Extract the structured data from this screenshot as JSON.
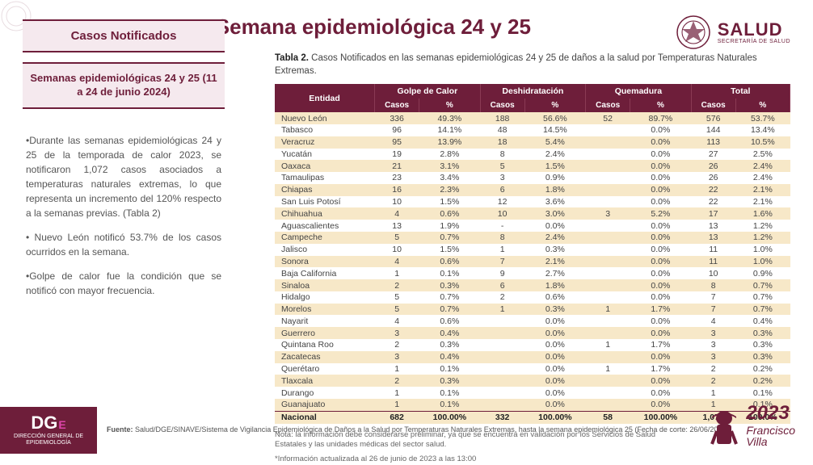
{
  "header": {
    "title": "Semana epidemiológica 24 y 25",
    "salud_main": "SALUD",
    "salud_sub": "SECRETARÍA DE SALUD"
  },
  "sidebar": {
    "box1": "Casos  Notificados",
    "box2": "Semanas epidemiológicas 24 y 25 (11 a 24 de junio 2024)",
    "p1": "•Durante las semanas epidemiológicas 24 y 25 de la temporada de calor 2023, se notificaron 1,072 casos asociados a temperaturas naturales extremas, lo que representa un incremento del 120%  respecto a la semanas previas. (Tabla 2)",
    "p2": "• Nuevo León notificó 53.7% de los casos ocurridos en la semana.",
    "p3": "•Golpe de calor fue la condición que se notificó con mayor frecuencia."
  },
  "table": {
    "title_bold": "Tabla 2.",
    "title_rest": " Casos Notificados en las semanas epidemiológicas 24 y 25 de daños a la salud por Temperaturas Naturales Extremas.",
    "head": {
      "entidad": "Entidad",
      "golpe": "Golpe de Calor",
      "deshi": "Deshidratación",
      "quema": "Quemadura",
      "total": "Total",
      "casos": "Casos",
      "pct": "%"
    },
    "rows": [
      {
        "e": "Nuevo León",
        "gc": "336",
        "gp": "49.3%",
        "dc": "188",
        "dp": "56.6%",
        "qc": "52",
        "qp": "89.7%",
        "tc": "576",
        "tp": "53.7%"
      },
      {
        "e": "Tabasco",
        "gc": "96",
        "gp": "14.1%",
        "dc": "48",
        "dp": "14.5%",
        "qc": "",
        "qp": "0.0%",
        "tc": "144",
        "tp": "13.4%"
      },
      {
        "e": "Veracruz",
        "gc": "95",
        "gp": "13.9%",
        "dc": "18",
        "dp": "5.4%",
        "qc": "",
        "qp": "0.0%",
        "tc": "113",
        "tp": "10.5%"
      },
      {
        "e": "Yucatán",
        "gc": "19",
        "gp": "2.8%",
        "dc": "8",
        "dp": "2.4%",
        "qc": "",
        "qp": "0.0%",
        "tc": "27",
        "tp": "2.5%"
      },
      {
        "e": "Oaxaca",
        "gc": "21",
        "gp": "3.1%",
        "dc": "5",
        "dp": "1.5%",
        "qc": "",
        "qp": "0.0%",
        "tc": "26",
        "tp": "2.4%"
      },
      {
        "e": "Tamaulipas",
        "gc": "23",
        "gp": "3.4%",
        "dc": "3",
        "dp": "0.9%",
        "qc": "",
        "qp": "0.0%",
        "tc": "26",
        "tp": "2.4%"
      },
      {
        "e": "Chiapas",
        "gc": "16",
        "gp": "2.3%",
        "dc": "6",
        "dp": "1.8%",
        "qc": "",
        "qp": "0.0%",
        "tc": "22",
        "tp": "2.1%"
      },
      {
        "e": "San Luis Potosí",
        "gc": "10",
        "gp": "1.5%",
        "dc": "12",
        "dp": "3.6%",
        "qc": "",
        "qp": "0.0%",
        "tc": "22",
        "tp": "2.1%"
      },
      {
        "e": "Chihuahua",
        "gc": "4",
        "gp": "0.6%",
        "dc": "10",
        "dp": "3.0%",
        "qc": "3",
        "qp": "5.2%",
        "tc": "17",
        "tp": "1.6%"
      },
      {
        "e": "Aguascalientes",
        "gc": "13",
        "gp": "1.9%",
        "dc": "-",
        "dp": "0.0%",
        "qc": "",
        "qp": "0.0%",
        "tc": "13",
        "tp": "1.2%"
      },
      {
        "e": "Campeche",
        "gc": "5",
        "gp": "0.7%",
        "dc": "8",
        "dp": "2.4%",
        "qc": "",
        "qp": "0.0%",
        "tc": "13",
        "tp": "1.2%"
      },
      {
        "e": "Jalisco",
        "gc": "10",
        "gp": "1.5%",
        "dc": "1",
        "dp": "0.3%",
        "qc": "",
        "qp": "0.0%",
        "tc": "11",
        "tp": "1.0%"
      },
      {
        "e": "Sonora",
        "gc": "4",
        "gp": "0.6%",
        "dc": "7",
        "dp": "2.1%",
        "qc": "",
        "qp": "0.0%",
        "tc": "11",
        "tp": "1.0%"
      },
      {
        "e": "Baja California",
        "gc": "1",
        "gp": "0.1%",
        "dc": "9",
        "dp": "2.7%",
        "qc": "",
        "qp": "0.0%",
        "tc": "10",
        "tp": "0.9%"
      },
      {
        "e": "Sinaloa",
        "gc": "2",
        "gp": "0.3%",
        "dc": "6",
        "dp": "1.8%",
        "qc": "",
        "qp": "0.0%",
        "tc": "8",
        "tp": "0.7%"
      },
      {
        "e": "Hidalgo",
        "gc": "5",
        "gp": "0.7%",
        "dc": "2",
        "dp": "0.6%",
        "qc": "",
        "qp": "0.0%",
        "tc": "7",
        "tp": "0.7%"
      },
      {
        "e": "Morelos",
        "gc": "5",
        "gp": "0.7%",
        "dc": "1",
        "dp": "0.3%",
        "qc": "1",
        "qp": "1.7%",
        "tc": "7",
        "tp": "0.7%"
      },
      {
        "e": "Nayarit",
        "gc": "4",
        "gp": "0.6%",
        "dc": "",
        "dp": "0.0%",
        "qc": "",
        "qp": "0.0%",
        "tc": "4",
        "tp": "0.4%"
      },
      {
        "e": "Guerrero",
        "gc": "3",
        "gp": "0.4%",
        "dc": "",
        "dp": "0.0%",
        "qc": "",
        "qp": "0.0%",
        "tc": "3",
        "tp": "0.3%"
      },
      {
        "e": "Quintana Roo",
        "gc": "2",
        "gp": "0.3%",
        "dc": "",
        "dp": "0.0%",
        "qc": "1",
        "qp": "1.7%",
        "tc": "3",
        "tp": "0.3%"
      },
      {
        "e": "Zacatecas",
        "gc": "3",
        "gp": "0.4%",
        "dc": "",
        "dp": "0.0%",
        "qc": "",
        "qp": "0.0%",
        "tc": "3",
        "tp": "0.3%"
      },
      {
        "e": "Querétaro",
        "gc": "1",
        "gp": "0.1%",
        "dc": "",
        "dp": "0.0%",
        "qc": "1",
        "qp": "1.7%",
        "tc": "2",
        "tp": "0.2%"
      },
      {
        "e": "Tlaxcala",
        "gc": "2",
        "gp": "0.3%",
        "dc": "",
        "dp": "0.0%",
        "qc": "",
        "qp": "0.0%",
        "tc": "2",
        "tp": "0.2%"
      },
      {
        "e": "Durango",
        "gc": "1",
        "gp": "0.1%",
        "dc": "",
        "dp": "0.0%",
        "qc": "",
        "qp": "0.0%",
        "tc": "1",
        "tp": "0.1%"
      },
      {
        "e": "Guanajuato",
        "gc": "1",
        "gp": "0.1%",
        "dc": "",
        "dp": "0.0%",
        "qc": "",
        "qp": "0.0%",
        "tc": "1",
        "tp": "0.1%"
      }
    ],
    "total": {
      "e": "Nacional",
      "gc": "682",
      "gp": "100.00%",
      "dc": "332",
      "dp": "100.00%",
      "qc": "58",
      "qp": "100.00%",
      "tc": "1,072",
      "tp": "100.0%"
    }
  },
  "notes": {
    "n1": "Nota: la información debe considerarse preliminar, ya que se encuentra en validación por los Servicios de Salud Estatales y las unidades médicas del sector salud.",
    "n2": "*Información actualizada al 26 de junio de 2023 a las 13:00"
  },
  "footer": {
    "dg": "DG",
    "dg_e": "E",
    "dg_sub": "DIRECCIÓN GENERAL DE EPIDEMIOLOGÍA",
    "fuente_label": "Fuente:",
    "fuente_text": " Salud/DGE/SINAVE/Sistema de  Vigilancia Epidemiológica de Daños  a la Salud  por Temperaturas Naturales Extremas, hasta la semana epidemiológica 25 (Fecha de corte: 26/06/2023).",
    "villa_year": "2023",
    "villa_name1": "Francisco",
    "villa_name2": "Villa"
  },
  "style": {
    "accent": "#6e1e3a",
    "alt_row": "#f7e8c8",
    "side_box_bg": "#f5e9ee"
  }
}
